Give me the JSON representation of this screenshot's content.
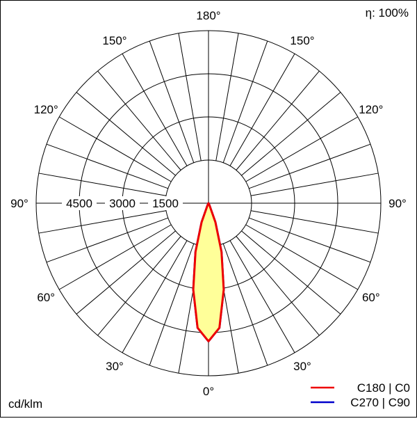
{
  "chart_data": {
    "type": "polar",
    "efficiency_label": "η: 100%",
    "unit_label": "cd/klm",
    "radial_ticks": [
      1500,
      3000,
      4500
    ],
    "radial_max": 6000,
    "angle_labels": [
      {
        "angle": 0,
        "label": "0°"
      },
      {
        "angle": 30,
        "label": "30°"
      },
      {
        "angle": 60,
        "label": "60°"
      },
      {
        "angle": 90,
        "label": "90°"
      },
      {
        "angle": 120,
        "label": "120°"
      },
      {
        "angle": 150,
        "label": "150°"
      },
      {
        "angle": 180,
        "label": "180°"
      }
    ],
    "spoke_step_deg": 10,
    "grid": true,
    "legend_position": "bottom-right",
    "series": [
      {
        "name": "C270 | C90",
        "color": "#0000cc",
        "angles": [
          0,
          5,
          10,
          15,
          20,
          25,
          30,
          90,
          180
        ],
        "values": [
          4800,
          4350,
          3050,
          1750,
          700,
          80,
          0,
          0,
          0
        ]
      },
      {
        "name": "C180 | C0",
        "color": "#ee0000",
        "fill": "#ffff99",
        "angles": [
          0,
          5,
          10,
          15,
          20,
          25,
          30,
          90,
          180
        ],
        "values": [
          4800,
          4350,
          3050,
          1750,
          700,
          80,
          0,
          0,
          0
        ]
      }
    ]
  }
}
